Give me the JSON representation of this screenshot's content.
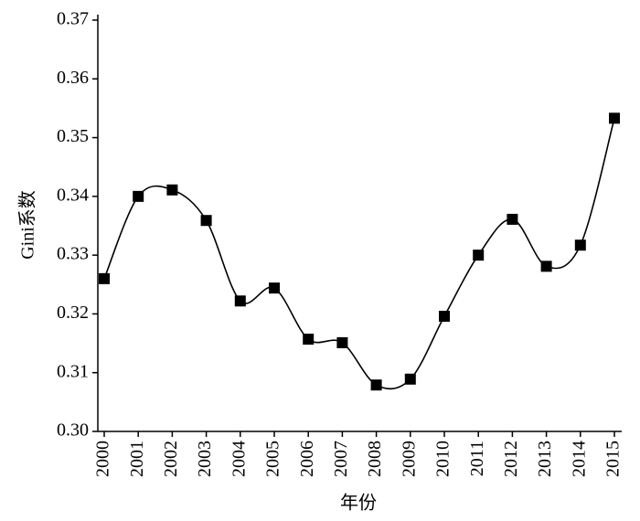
{
  "chart_data": {
    "type": "line",
    "xlabel": "年份",
    "ylabel": "Gini系数",
    "categories": [
      "2000",
      "2001",
      "2002",
      "2003",
      "2004",
      "2005",
      "2006",
      "2007",
      "2008",
      "2009",
      "2010",
      "2011",
      "2012",
      "2013",
      "2014",
      "2015"
    ],
    "values": [
      0.326,
      0.34,
      0.3411,
      0.3359,
      0.3222,
      0.3244,
      0.3157,
      0.3151,
      0.3079,
      0.3089,
      0.3196,
      0.33,
      0.3361,
      0.3281,
      0.3317,
      0.3533
    ],
    "color": "#000000",
    "ylim": [
      0.3,
      0.37
    ],
    "yticks": [
      {
        "value": 0.3,
        "label": "0.30"
      },
      0.31,
      0.32,
      0.33,
      0.34,
      0.35,
      0.36,
      0.37
    ],
    "grid": false
  }
}
